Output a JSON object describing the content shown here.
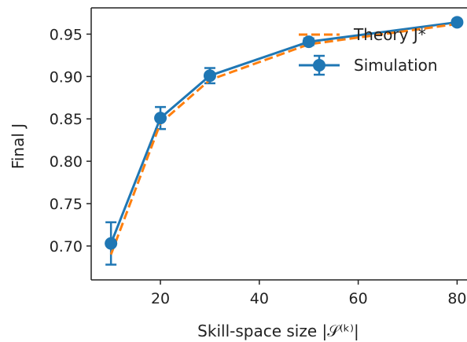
{
  "chart_data": {
    "type": "line",
    "xlabel": "Skill-space size |𝒮⁽ᵏ⁾|",
    "ylabel": "Final J",
    "xlim": [
      6,
      82
    ],
    "ylim": [
      0.66,
      0.981
    ],
    "xticks": [
      "20",
      "40",
      "60",
      "80"
    ],
    "yticks": [
      "0.70",
      "0.75",
      "0.80",
      "0.85",
      "0.90",
      "0.95"
    ],
    "grid": false,
    "legend_position": "top-right",
    "series": [
      {
        "name": "Theory J*",
        "style": "dashed",
        "color": "#ff7f0e",
        "x": [
          10,
          20,
          30,
          50,
          80
        ],
        "y": [
          0.69,
          0.845,
          0.896,
          0.938,
          0.962
        ]
      },
      {
        "name": "Simulation",
        "style": "solid-markers-errorbars",
        "color": "#1f77b4",
        "x": [
          10,
          20,
          30,
          50,
          80
        ],
        "y": [
          0.703,
          0.851,
          0.901,
          0.941,
          0.964
        ],
        "error": [
          0.025,
          0.013,
          0.009,
          0.004,
          0.002
        ]
      }
    ]
  }
}
